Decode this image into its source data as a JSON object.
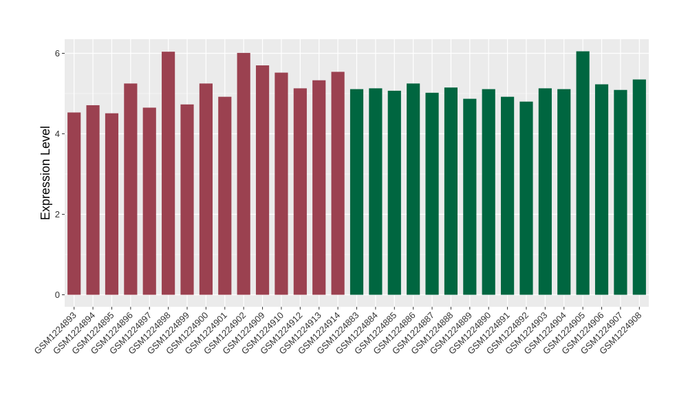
{
  "chart_data": {
    "type": "bar",
    "ylabel": "Expression Level",
    "xlabel": "",
    "ylim": [
      0,
      6.25
    ],
    "yticks": [
      0,
      2,
      4,
      6
    ],
    "grid": true,
    "colors": {
      "group1": "#9b4150",
      "group2": "#006640",
      "panel_bg": "#ebebeb",
      "grid": "#ffffff"
    },
    "categories": [
      "GSM1224893",
      "GSM1224894",
      "GSM1224895",
      "GSM1224896",
      "GSM1224897",
      "GSM1224898",
      "GSM1224899",
      "GSM1224900",
      "GSM1224901",
      "GSM1224902",
      "GSM1224909",
      "GSM1224910",
      "GSM1224912",
      "GSM1224913",
      "GSM1224914",
      "GSM1224883",
      "GSM1224884",
      "GSM1224885",
      "GSM1224886",
      "GSM1224887",
      "GSM1224888",
      "GSM1224889",
      "GSM1224890",
      "GSM1224891",
      "GSM1224892",
      "GSM1224903",
      "GSM1224904",
      "GSM1224905",
      "GSM1224906",
      "GSM1224907",
      "GSM1224908"
    ],
    "values": [
      4.53,
      4.71,
      4.51,
      5.25,
      4.65,
      6.04,
      4.73,
      5.25,
      4.92,
      6.01,
      5.7,
      5.52,
      5.13,
      5.33,
      5.54,
      5.11,
      5.13,
      5.07,
      5.25,
      5.02,
      5.15,
      4.87,
      5.11,
      4.92,
      4.8,
      5.13,
      5.11,
      6.05,
      5.23,
      5.09,
      5.35
    ],
    "groups": [
      "group1",
      "group1",
      "group1",
      "group1",
      "group1",
      "group1",
      "group1",
      "group1",
      "group1",
      "group1",
      "group1",
      "group1",
      "group1",
      "group1",
      "group1",
      "group2",
      "group2",
      "group2",
      "group2",
      "group2",
      "group2",
      "group2",
      "group2",
      "group2",
      "group2",
      "group2",
      "group2",
      "group2",
      "group2",
      "group2",
      "group2"
    ]
  }
}
